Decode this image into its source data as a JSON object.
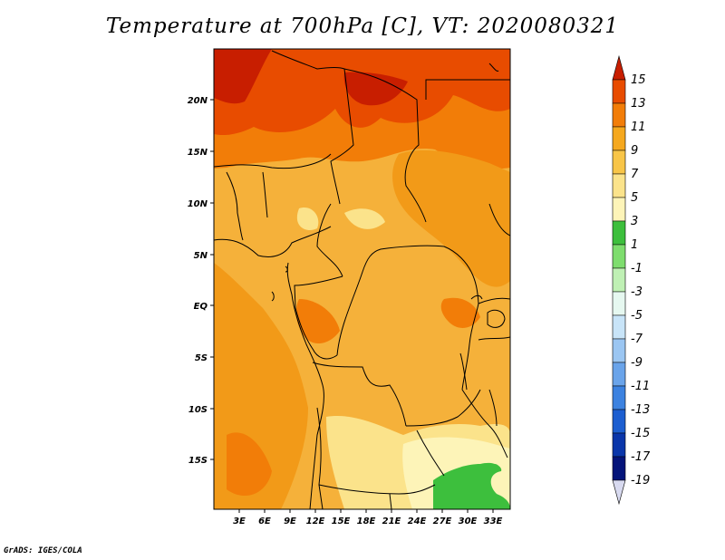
{
  "title": "Temperature at 700hPa [C], VT: 2020080321",
  "credit": "GrADS: IGES/COLA",
  "map": {
    "lat_labels": [
      "20N",
      "15N",
      "10N",
      "5N",
      "EQ",
      "5S",
      "10S",
      "15S"
    ],
    "lon_labels": [
      "3E",
      "6E",
      "9E",
      "12E",
      "15E",
      "18E",
      "21E",
      "24E",
      "27E",
      "30E",
      "33E"
    ],
    "lat_range": [
      -20,
      24.5
    ],
    "lon_range": [
      0,
      35.5
    ]
  },
  "colorbar": {
    "labels": [
      "15",
      "13",
      "11",
      "9",
      "7",
      "5",
      "3",
      "1",
      "-1",
      "-3",
      "-5",
      "-7",
      "-9",
      "-11",
      "-13",
      "-15",
      "-17",
      "-19"
    ],
    "colors": [
      "#c81e00",
      "#e84c00",
      "#f27d08",
      "#f5a81e",
      "#f8c548",
      "#fbe38b",
      "#fdf4b8",
      "#3dbf3d",
      "#7edd6e",
      "#bff0b4",
      "#e6f8f0",
      "#c8e4f8",
      "#9bc6f2",
      "#6aa4ea",
      "#3c82e0",
      "#1c5ed0",
      "#0a36aa",
      "#04147a",
      "#d8daf0"
    ]
  }
}
